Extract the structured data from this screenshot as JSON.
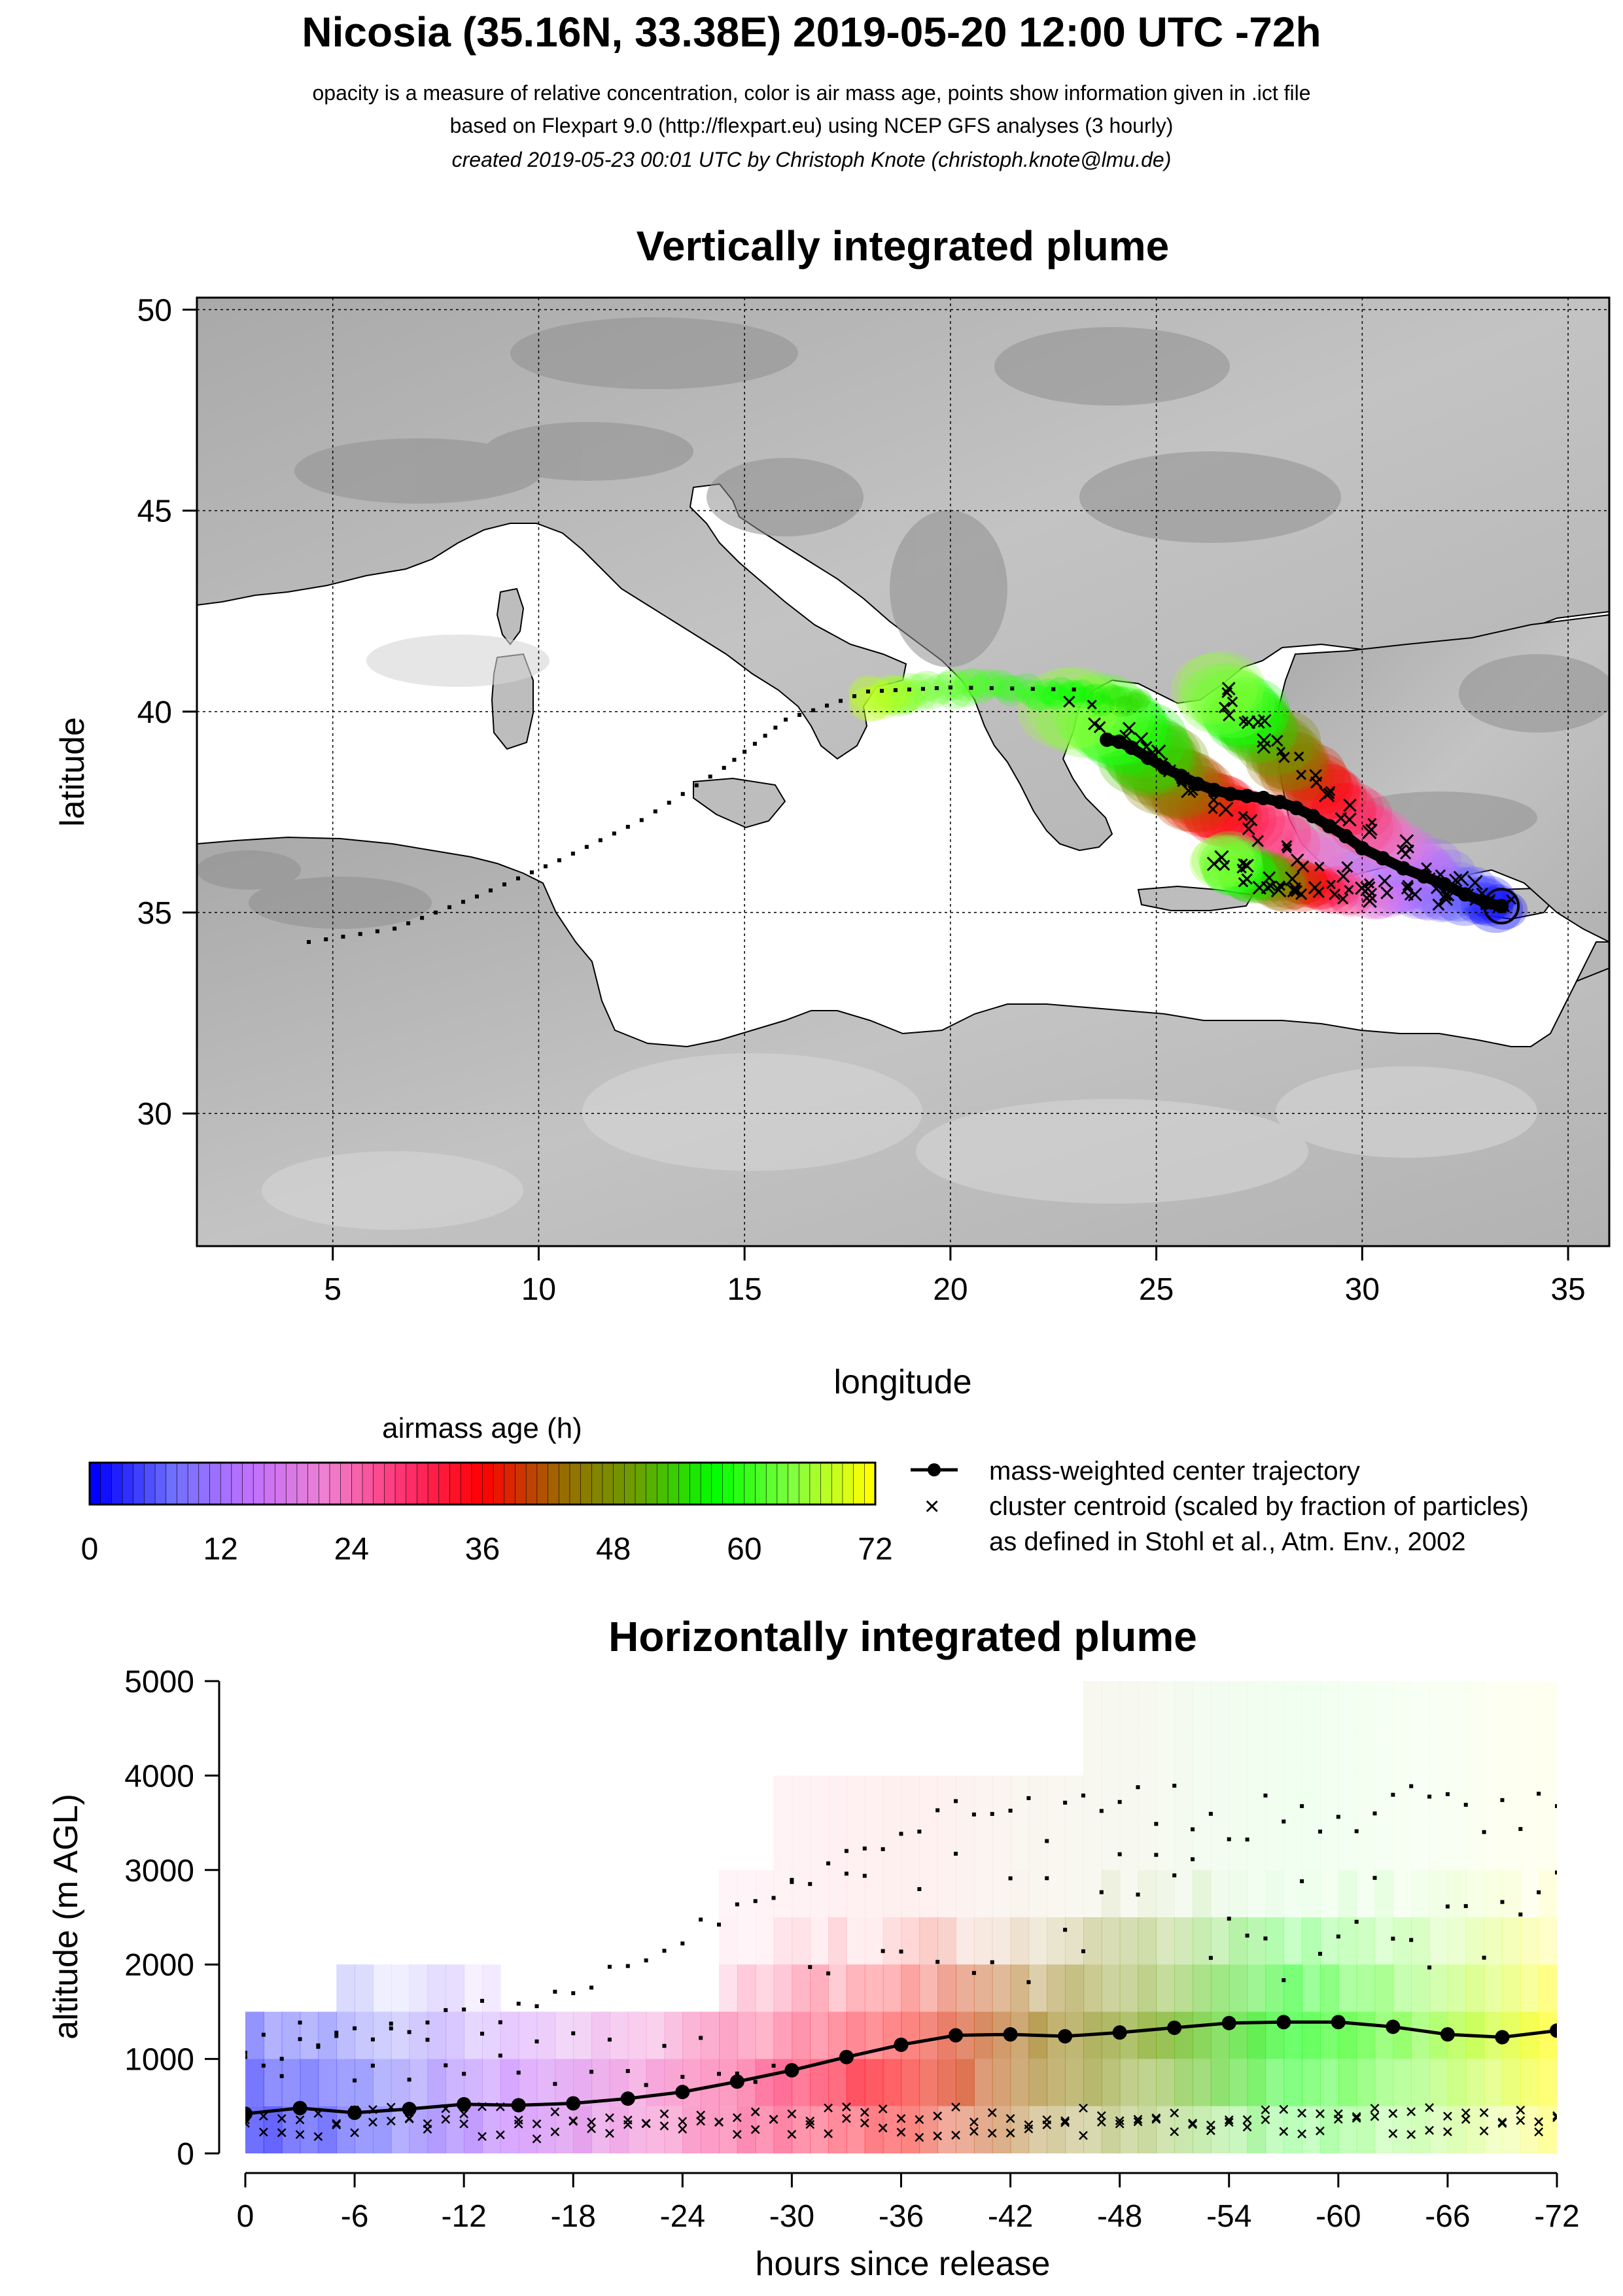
{
  "title": "Nicosia (35.16N, 33.38E) 2019-05-20 12:00 UTC -72h",
  "subtitle_lines": [
    "opacity is a measure of relative concentration, color is air mass age, points show information given in .ict file",
    "based on Flexpart 9.0 (http://flexpart.eu) using NCEP GFS analyses (3 hourly)",
    "created 2019-05-23 00:01 UTC by Christoph Knote (christoph.knote@lmu.de)"
  ],
  "colors": {
    "age_ramp": [
      "#0000ff",
      "#7070ff",
      "#c070ff",
      "#f080d0",
      "#ff3070",
      "#ff0000",
      "#9a6a00",
      "#6aa000",
      "#00ff00",
      "#80ff40",
      "#ffff00"
    ],
    "land": "#b9b9b9",
    "sea": "#ffffff",
    "track": "#000000"
  },
  "legend": {
    "colorbar_title": "airmass age (h)",
    "colorbar_ticks": [
      "0",
      "12",
      "24",
      "36",
      "48",
      "60",
      "72"
    ],
    "entries": [
      "mass-weighted center trajectory",
      "cluster centroid (scaled by fraction of particles)",
      "as defined in Stohl et al., Atm. Env., 2002"
    ]
  },
  "chart_data": [
    {
      "type": "map",
      "title": "Vertically integrated plume",
      "xlabel": "longitude",
      "ylabel": "latitude",
      "xlim": [
        1.7,
        36.0
      ],
      "ylim": [
        26.7,
        50.3
      ],
      "xticks": [
        "5",
        "10",
        "15",
        "20",
        "25",
        "30",
        "35"
      ],
      "yticks": [
        "30",
        "35",
        "40",
        "45",
        "50"
      ],
      "grid": true,
      "release_site": {
        "lon": 33.38,
        "lat": 35.16
      },
      "center_trajectory": {
        "lon": [
          33.38,
          33.0,
          32.5,
          32.0,
          31.5,
          31.0,
          30.5,
          30.0,
          29.6,
          29.2,
          28.8,
          28.4,
          28.0,
          27.6,
          27.2,
          26.8,
          26.4,
          26.0,
          25.6,
          25.2,
          24.8,
          24.4,
          24.1,
          23.8
        ],
        "lat": [
          35.16,
          35.25,
          35.45,
          35.7,
          35.9,
          36.1,
          36.35,
          36.6,
          36.9,
          37.15,
          37.4,
          37.6,
          37.75,
          37.85,
          37.9,
          37.95,
          38.05,
          38.2,
          38.4,
          38.6,
          38.85,
          39.1,
          39.25,
          39.3
        ]
      }
    },
    {
      "type": "heatmap",
      "title": "Horizontally integrated plume",
      "xlabel": "hours since release",
      "ylabel": "altitude (m AGL)",
      "xlim": [
        0,
        -72
      ],
      "ylim": [
        0,
        5000
      ],
      "xticks": [
        "0",
        "-6",
        "-12",
        "-18",
        "-24",
        "-30",
        "-36",
        "-42",
        "-48",
        "-54",
        "-60",
        "-66",
        "-72"
      ],
      "yticks": [
        "0",
        "1000",
        "2000",
        "3000",
        "4000",
        "5000"
      ],
      "center_trajectory": {
        "hours": [
          0,
          -3,
          -6,
          -9,
          -12,
          -15,
          -18,
          -21,
          -24,
          -27,
          -30,
          -33,
          -36,
          -39,
          -42,
          -45,
          -48,
          -51,
          -54,
          -57,
          -60,
          -63,
          -66,
          -69,
          -72
        ],
        "altitude": [
          420,
          480,
          430,
          470,
          520,
          510,
          530,
          580,
          650,
          760,
          880,
          1020,
          1150,
          1250,
          1260,
          1240,
          1280,
          1330,
          1380,
          1390,
          1390,
          1340,
          1260,
          1230,
          1300
        ]
      }
    }
  ]
}
